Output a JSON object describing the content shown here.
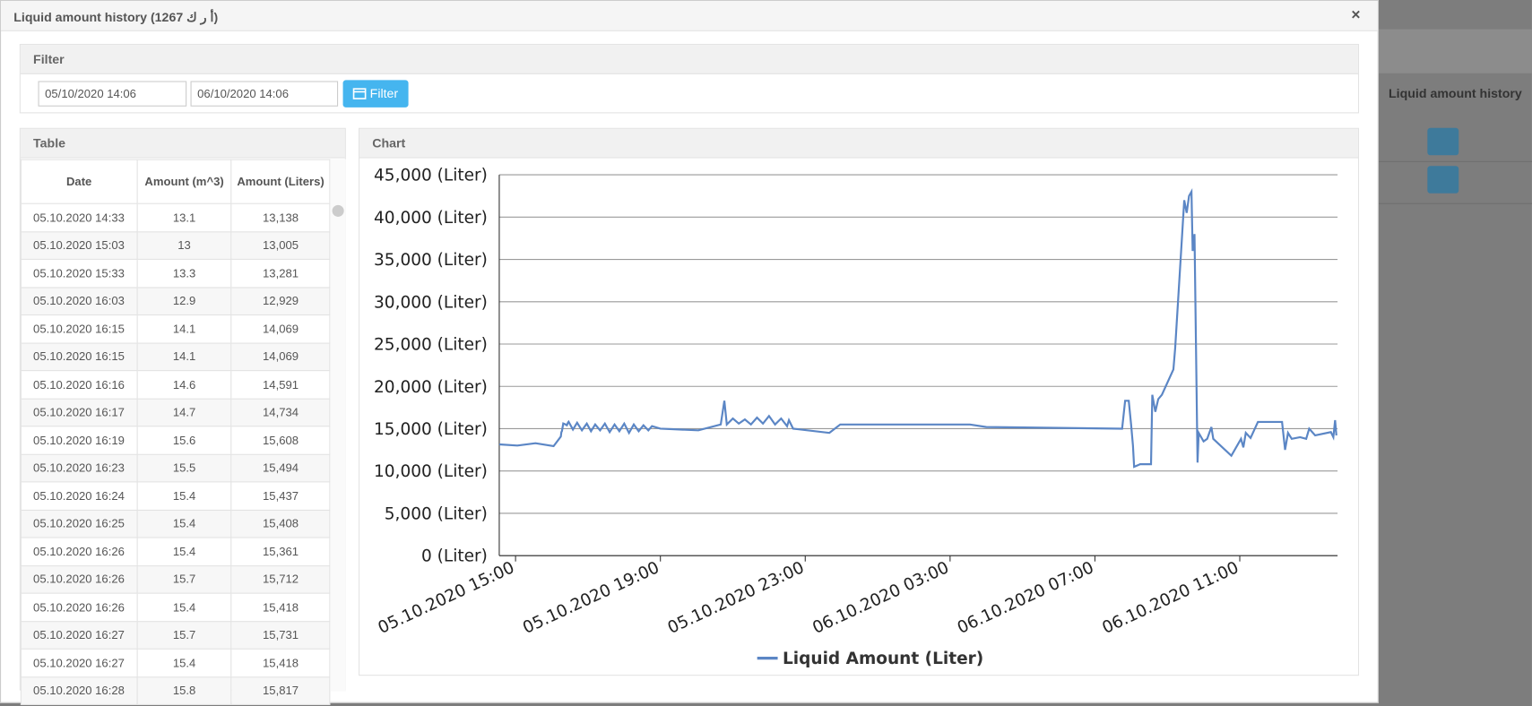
{
  "modal": {
    "title": "Liquid amount history (1267 أ ر ك)",
    "close": "×"
  },
  "filter": {
    "title": "Filter",
    "from": "05/10/2020 14:06",
    "to": "06/10/2020 14:06",
    "button": "Filter"
  },
  "table": {
    "title": "Table",
    "columns": [
      "Date",
      "Amount (m^3)",
      "Amount (Liters)"
    ],
    "rows": [
      [
        "05.10.2020 14:33",
        "13.1",
        "13,138"
      ],
      [
        "05.10.2020 15:03",
        "13",
        "13,005"
      ],
      [
        "05.10.2020 15:33",
        "13.3",
        "13,281"
      ],
      [
        "05.10.2020 16:03",
        "12.9",
        "12,929"
      ],
      [
        "05.10.2020 16:15",
        "14.1",
        "14,069"
      ],
      [
        "05.10.2020 16:15",
        "14.1",
        "14,069"
      ],
      [
        "05.10.2020 16:16",
        "14.6",
        "14,591"
      ],
      [
        "05.10.2020 16:17",
        "14.7",
        "14,734"
      ],
      [
        "05.10.2020 16:19",
        "15.6",
        "15,608"
      ],
      [
        "05.10.2020 16:23",
        "15.5",
        "15,494"
      ],
      [
        "05.10.2020 16:24",
        "15.4",
        "15,437"
      ],
      [
        "05.10.2020 16:25",
        "15.4",
        "15,408"
      ],
      [
        "05.10.2020 16:26",
        "15.4",
        "15,361"
      ],
      [
        "05.10.2020 16:26",
        "15.7",
        "15,712"
      ],
      [
        "05.10.2020 16:26",
        "15.4",
        "15,418"
      ],
      [
        "05.10.2020 16:27",
        "15.7",
        "15,731"
      ],
      [
        "05.10.2020 16:27",
        "15.4",
        "15,418"
      ],
      [
        "05.10.2020 16:28",
        "15.8",
        "15,817"
      ]
    ]
  },
  "chart_panel": {
    "title": "Chart"
  },
  "background": {
    "heading": "Liquid amount history"
  },
  "chart_data": {
    "type": "line",
    "legend": "bottom",
    "x": [
      "05.10.2020 14:33",
      "05.10.2020 15:03",
      "05.10.2020 15:33",
      "05.10.2020 16:03",
      "05.10.2020 16:15",
      "05.10.2020 16:16",
      "05.10.2020 16:17",
      "05.10.2020 16:19",
      "05.10.2020 16:23",
      "05.10.2020 16:25",
      "05.10.2020 16:27",
      "05.10.2020 16:28",
      "05.10.2020 16:35",
      "05.10.2020 16:42",
      "05.10.2020 16:50",
      "05.10.2020 16:58",
      "05.10.2020 17:05",
      "05.10.2020 17:12",
      "05.10.2020 17:20",
      "05.10.2020 17:28",
      "05.10.2020 17:36",
      "05.10.2020 17:44",
      "05.10.2020 17:52",
      "05.10.2020 18:00",
      "05.10.2020 18:08",
      "05.10.2020 18:16",
      "05.10.2020 18:24",
      "05.10.2020 18:32",
      "05.10.2020 18:40",
      "05.10.2020 18:46",
      "05.10.2020 19:00",
      "05.10.2020 20:03",
      "05.10.2020 20:40",
      "05.10.2020 20:46",
      "05.10.2020 20:50",
      "05.10.2020 21:00",
      "05.10.2020 21:10",
      "05.10.2020 21:20",
      "05.10.2020 21:30",
      "05.10.2020 21:40",
      "05.10.2020 21:50",
      "05.10.2020 22:00",
      "05.10.2020 22:10",
      "05.10.2020 22:20",
      "05.10.2020 22:30",
      "05.10.2020 22:33",
      "05.10.2020 22:40",
      "05.10.2020 23:40",
      "05.10.2020 23:58",
      "06.10.2020 03:33",
      "06.10.2020 04:00",
      "06.10.2020 07:45",
      "06.10.2020 07:50",
      "06.10.2020 07:56",
      "06.10.2020 08:00",
      "06.10.2020 08:03",
      "06.10.2020 08:05",
      "06.10.2020 08:15",
      "06.10.2020 08:33",
      "06.10.2020 08:35",
      "06.10.2020 08:40",
      "06.10.2020 08:45",
      "06.10.2020 08:51",
      "06.10.2020 09:10",
      "06.10.2020 09:13",
      "06.10.2020 09:28",
      "06.10.2020 09:32",
      "06.10.2020 09:36",
      "06.10.2020 09:40",
      "06.10.2020 09:42",
      "06.10.2020 09:45",
      "06.10.2020 09:50",
      "06.10.2020 09:52",
      "06.10.2020 10:00",
      "06.10.2020 10:06",
      "06.10.2020 10:13",
      "06.10.2020 10:16",
      "06.10.2020 10:46",
      "06.10.2020 11:02",
      "06.10.2020 11:06",
      "06.10.2020 11:10",
      "06.10.2020 11:18",
      "06.10.2020 11:30",
      "06.10.2020 12:10",
      "06.10.2020 12:15",
      "06.10.2020 12:20",
      "06.10.2020 12:26",
      "06.10.2020 12:40",
      "06.10.2020 12:50",
      "06.10.2020 12:55",
      "06.10.2020 13:05",
      "06.10.2020 13:31",
      "06.10.2020 13:35",
      "06.10.2020 13:38",
      "06.10.2020 13:40"
    ],
    "series": [
      {
        "name": "Liquid Amount (Liter)",
        "color": "#5b86c5",
        "values": [
          13138,
          13005,
          13281,
          12929,
          14069,
          14591,
          14734,
          15608,
          15494,
          15408,
          15731,
          15817,
          14900,
          15700,
          14800,
          15600,
          14700,
          15500,
          14800,
          15600,
          14600,
          15500,
          14700,
          15600,
          14500,
          15500,
          14700,
          15400,
          14800,
          15300,
          15000,
          14800,
          15500,
          18300,
          15500,
          16200,
          15600,
          16100,
          15500,
          16300,
          15600,
          16500,
          15500,
          16200,
          15300,
          16000,
          15000,
          14500,
          15500,
          15500,
          15200,
          15000,
          18300,
          18300,
          15500,
          13000,
          10500,
          10800,
          10800,
          19000,
          17000,
          18500,
          19000,
          22000,
          24500,
          42000,
          40500,
          42500,
          43000,
          36000,
          38000,
          11000,
          14500,
          13500,
          13800,
          15200,
          13800,
          11800,
          13800,
          12800,
          14500,
          13900,
          15800,
          15800,
          12500,
          14500,
          13800,
          14000,
          13800,
          15000,
          14200,
          14600,
          14000,
          16000,
          14200
        ]
      }
    ],
    "xlim": [
      "05.10.2020 14:33",
      "06.10.2020 13:42"
    ],
    "xticks": [
      "05.10.2020 15:00",
      "05.10.2020 19:00",
      "05.10.2020 23:00",
      "06.10.2020 03:00",
      "06.10.2020 07:00",
      "06.10.2020 11:00"
    ],
    "ylim": [
      0,
      45000
    ],
    "yticks": [
      {
        "value": 0,
        "label": "0 (Liter)"
      },
      {
        "value": 5000,
        "label": "5,000 (Liter)"
      },
      {
        "value": 10000,
        "label": "10,000 (Liter)"
      },
      {
        "value": 15000,
        "label": "15,000 (Liter)"
      },
      {
        "value": 20000,
        "label": "20,000 (Liter)"
      },
      {
        "value": 25000,
        "label": "25,000 (Liter)"
      },
      {
        "value": 30000,
        "label": "30,000 (Liter)"
      },
      {
        "value": 35000,
        "label": "35,000 (Liter)"
      },
      {
        "value": 40000,
        "label": "40,000 (Liter)"
      },
      {
        "value": 45000,
        "label": "45,000 (Liter)"
      }
    ],
    "grid": true
  }
}
